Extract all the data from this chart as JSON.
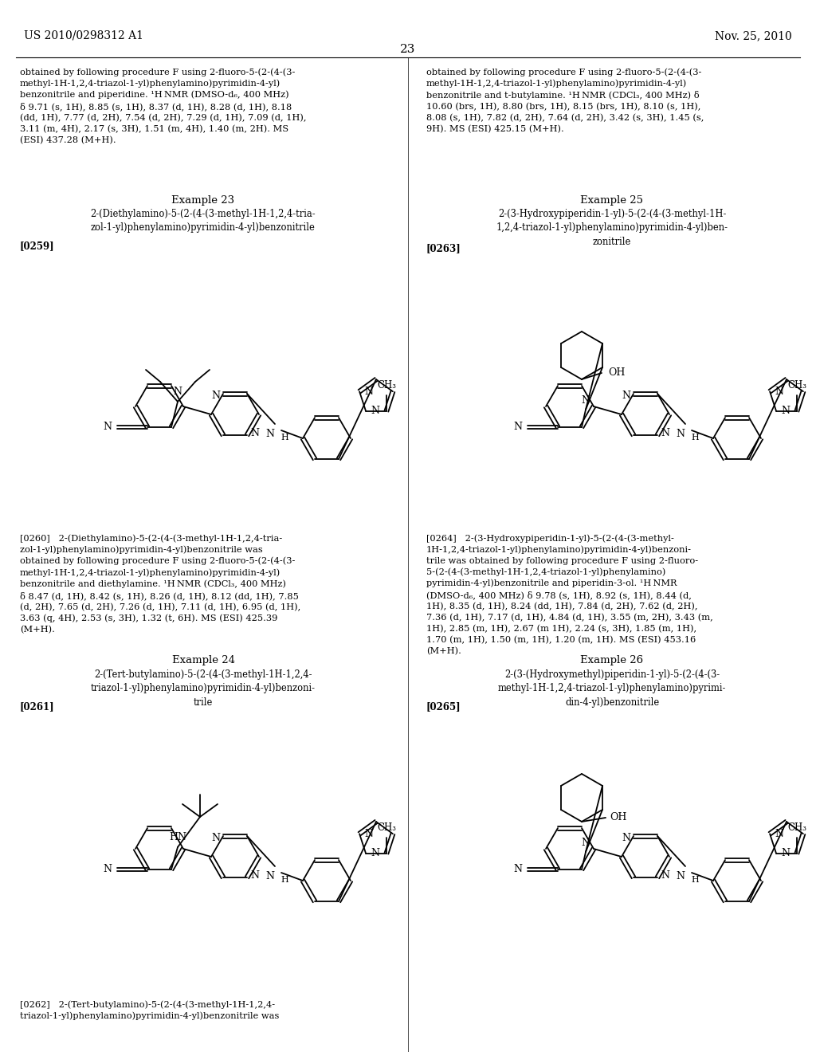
{
  "page_header_left": "US 2010/0298312 A1",
  "page_header_right": "Nov. 25, 2010",
  "page_number": "23",
  "background_color": "#ffffff",
  "text_color": "#000000",
  "top_left_para": "obtained by following procedure F using 2-fluoro-5-(2-(4-(3-\nmethyl-1H-1,2,4-triazol-1-yl)phenylamino)pyrimidin-4-yl)\nbenzonitrile and piperidine. ¹H NMR (DMSO-d₆, 400 MHz)\nδ 9.71 (s, 1H), 8.85 (s, 1H), 8.37 (d, 1H), 8.28 (d, 1H), 8.18\n(dd, 1H), 7.77 (d, 2H), 7.54 (d, 2H), 7.29 (d, 1H), 7.09 (d, 1H),\n3.11 (m, 4H), 2.17 (s, 3H), 1.51 (m, 4H), 1.40 (m, 2H). MS\n(ESI) 437.28 (M+H).",
  "top_right_para": "obtained by following procedure F using 2-fluoro-5-(2-(4-(3-\nmethyl-1H-1,2,4-triazol-1-yl)phenylamino)pyrimidin-4-yl)\nbenzonitrile and t-butylamine. ¹H NMR (CDCl₃, 400 MHz) δ\n10.60 (brs, 1H), 8.80 (brs, 1H), 8.15 (brs, 1H), 8.10 (s, 1H),\n8.08 (s, 1H), 7.82 (d, 2H), 7.64 (d, 2H), 3.42 (s, 3H), 1.45 (s,\n9H). MS (ESI) 425.15 (M+H).",
  "ex23_title": "Example 23",
  "ex23_name": "2-(Diethylamino)-5-(2-(4-(3-methyl-1H-1,2,4-tria-\nzol-1-yl)phenylamino)pyrimidin-4-yl)benzonitrile",
  "ex23_ref": "[0259]",
  "ex25_title": "Example 25",
  "ex25_name": "2-(3-Hydroxypiperidin-1-yl)-5-(2-(4-(3-methyl-1H-\n1,2,4-triazol-1-yl)phenylamino)pyrimidin-4-yl)ben-\nzonitrile",
  "ex25_ref": "[0263]",
  "ex23_desc": "[0260]   2-(Diethylamino)-5-(2-(4-(3-methyl-1H-1,2,4-tria-\nzol-1-yl)phenylamino)pyrimidin-4-yl)benzonitrile was\nobtained by following procedure F using 2-fluoro-5-(2-(4-(3-\nmethyl-1H-1,2,4-triazol-1-yl)phenylamino)pyrimidin-4-yl)\nbenzonitrile and diethylamine. ¹H NMR (CDCl₃, 400 MHz)\nδ 8.47 (d, 1H), 8.42 (s, 1H), 8.26 (d, 1H), 8.12 (dd, 1H), 7.85\n(d, 2H), 7.65 (d, 2H), 7.26 (d, 1H), 7.11 (d, 1H), 6.95 (d, 1H),\n3.63 (q, 4H), 2.53 (s, 3H), 1.32 (t, 6H). MS (ESI) 425.39\n(M+H).",
  "ex24_title": "Example 24",
  "ex24_name": "2-(Tert-butylamino)-5-(2-(4-(3-methyl-1H-1,2,4-\ntriazol-1-yl)phenylamino)pyrimidin-4-yl)benzoni-\ntrile",
  "ex24_ref": "[0261]",
  "ex25_desc": "[0264]   2-(3-Hydroxypiperidin-1-yl)-5-(2-(4-(3-methyl-\n1H-1,2,4-triazol-1-yl)phenylamino)pyrimidin-4-yl)benzoni-\ntrile was obtained by following procedure F using 2-fluoro-\n5-(2-(4-(3-methyl-1H-1,2,4-triazol-1-yl)phenylamino)\npyrimidin-4-yl)benzonitrile and piperidin-3-ol. ¹H NMR\n(DMSO-d₆, 400 MHz) δ 9.78 (s, 1H), 8.92 (s, 1H), 8.44 (d,\n1H), 8.35 (d, 1H), 8.24 (dd, 1H), 7.84 (d, 2H), 7.62 (d, 2H),\n7.36 (d, 1H), 7.17 (d, 1H), 4.84 (d, 1H), 3.55 (m, 2H), 3.43 (m,\n1H), 2.85 (m, 1H), 2.67 (m 1H), 2.24 (s, 3H), 1.85 (m, 1H),\n1.70 (m, 1H), 1.50 (m, 1H), 1.20 (m, 1H). MS (ESI) 453.16\n(M+H).",
  "ex26_title": "Example 26",
  "ex26_name": "2-(3-(Hydroxymethyl)piperidin-1-yl)-5-(2-(4-(3-\nmethyl-1H-1,2,4-triazol-1-yl)phenylamino)pyrimi-\ndin-4-yl)benzonitrile",
  "ex26_ref": "[0265]",
  "ex24_desc": "[0262]   2-(Tert-butylamino)-5-(2-(4-(3-methyl-1H-1,2,4-\ntriazol-1-yl)phenylamino)pyrimidin-4-yl)benzonitrile was"
}
